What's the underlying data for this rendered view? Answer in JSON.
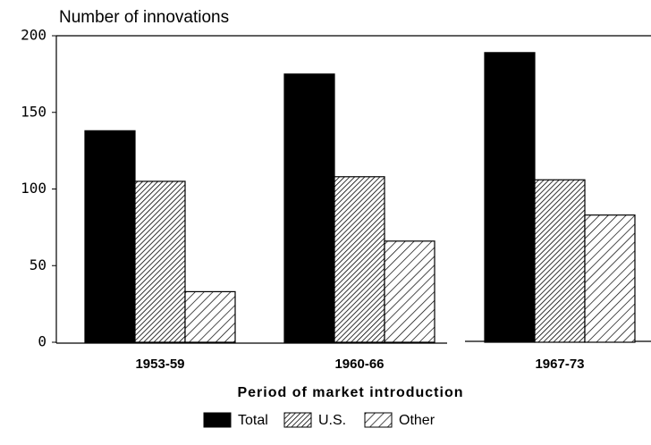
{
  "chart_data": {
    "type": "bar",
    "title": "Number of innovations",
    "x_label": "Period of market introduction",
    "categories": [
      "1953-59",
      "1960-66",
      "1967-73"
    ],
    "series": [
      {
        "name": "Total",
        "color": "#000000",
        "pattern": "solid",
        "values": [
          138,
          175,
          189
        ]
      },
      {
        "name": "U.S.",
        "color": "#000000",
        "pattern": "dense-hatch",
        "values": [
          105,
          108,
          106
        ]
      },
      {
        "name": "Other",
        "color": "#000000",
        "pattern": "sparse-hatch",
        "values": [
          33,
          66,
          83
        ]
      }
    ],
    "ylim": [
      0,
      200
    ],
    "yticks": [
      0,
      50,
      100,
      150,
      200
    ],
    "grid": false
  }
}
